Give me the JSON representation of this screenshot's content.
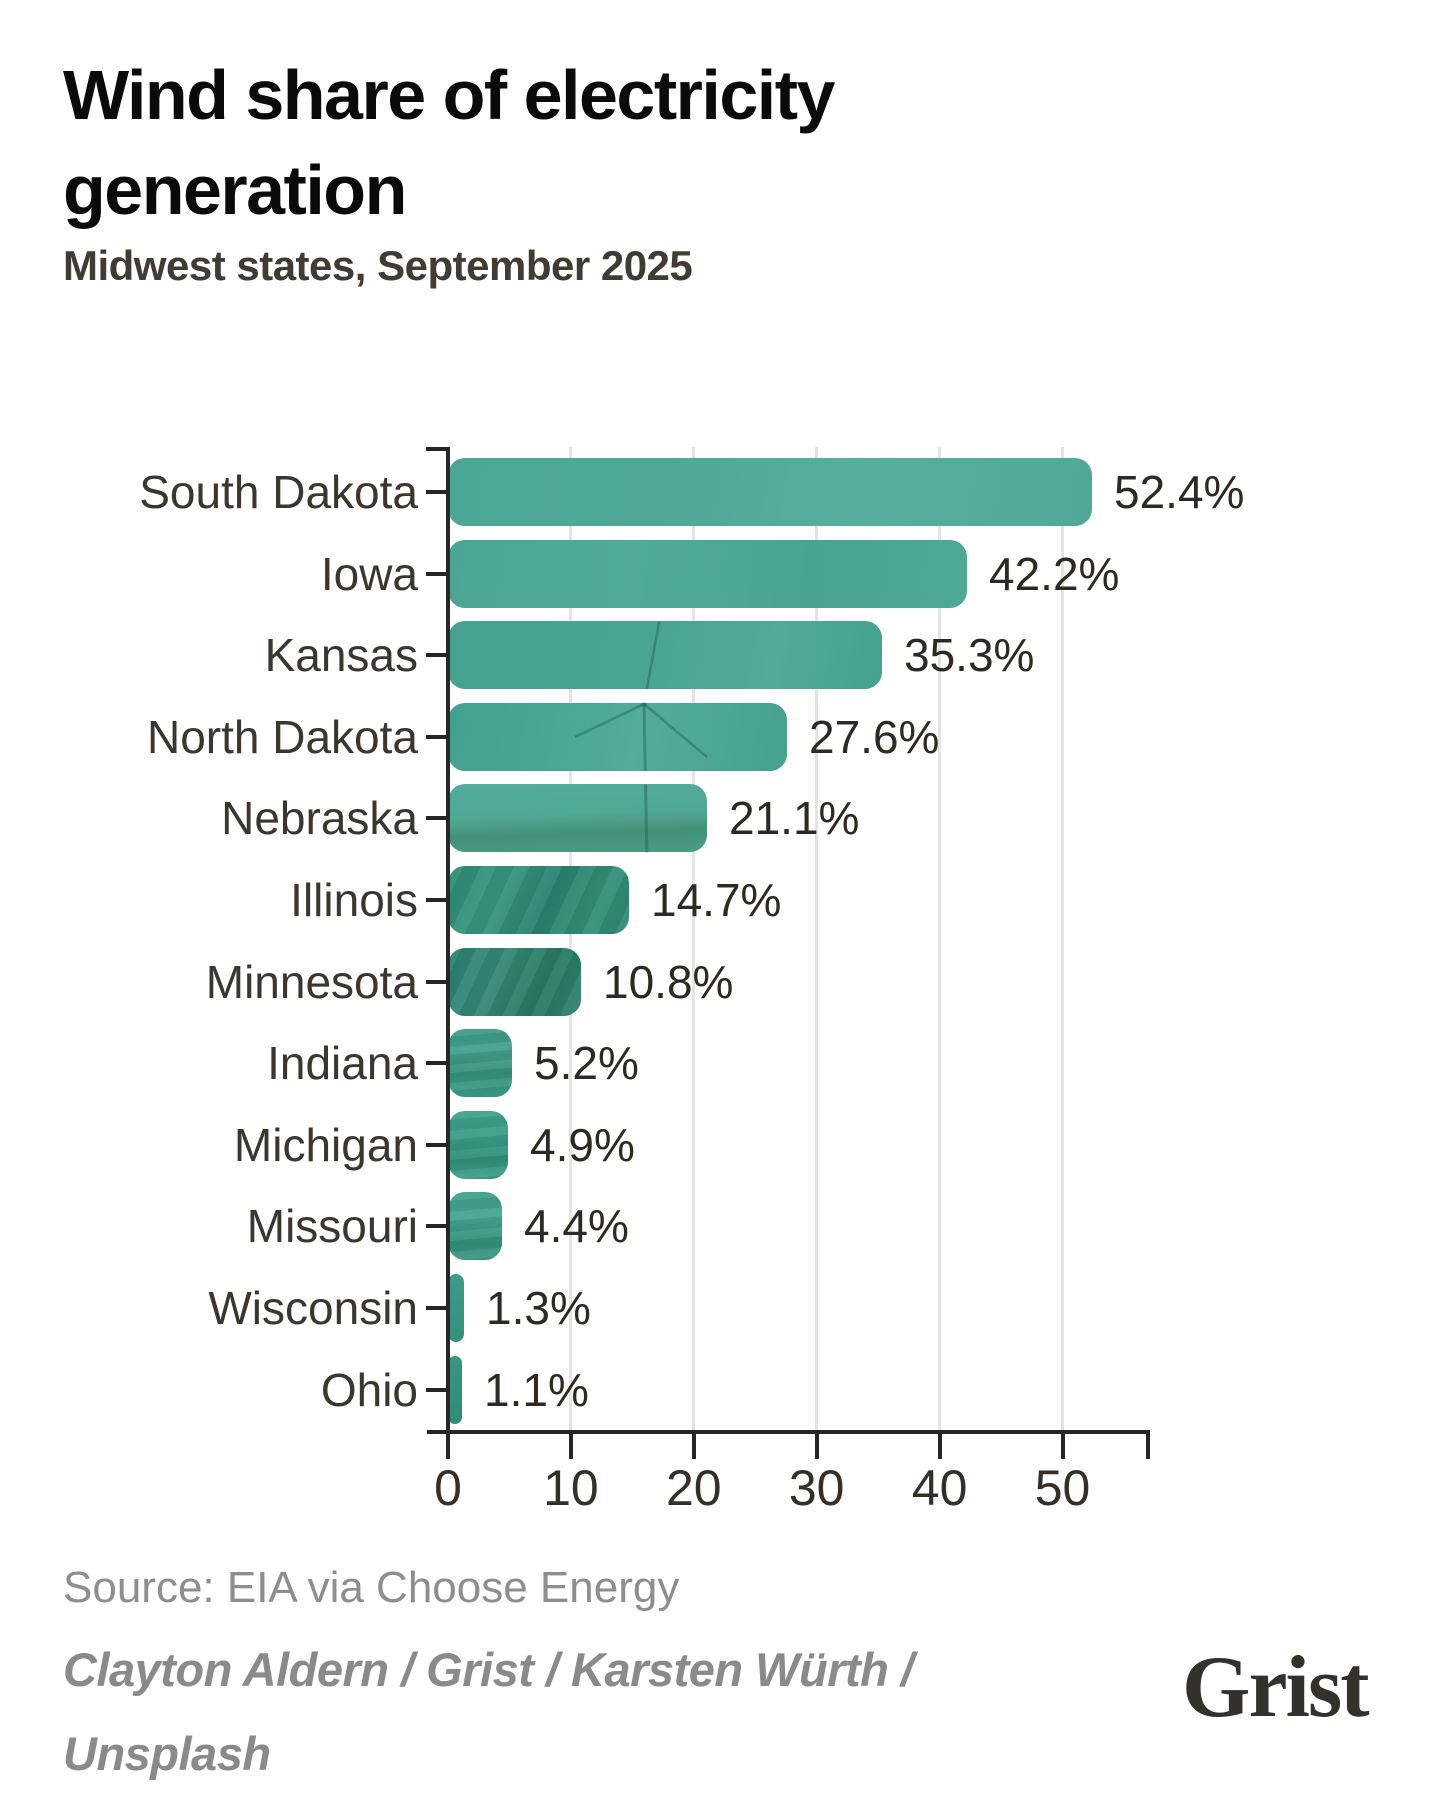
{
  "header": {
    "title": "Wind share of electricity generation",
    "subtitle": "Midwest states, September 2025"
  },
  "chart_data": {
    "type": "bar",
    "orientation": "horizontal",
    "title": "Wind share of electricity generation",
    "subtitle": "Midwest states, September 2025",
    "categories": [
      "South Dakota",
      "Iowa",
      "Kansas",
      "North Dakota",
      "Nebraska",
      "Illinois",
      "Minnesota",
      "Indiana",
      "Michigan",
      "Missouri",
      "Wisconsin",
      "Ohio"
    ],
    "values": [
      52.4,
      42.2,
      35.3,
      27.6,
      21.1,
      14.7,
      10.8,
      5.2,
      4.9,
      4.4,
      1.3,
      1.1
    ],
    "value_labels": [
      "52.4%",
      "42.2%",
      "35.3%",
      "27.6%",
      "21.1%",
      "14.7%",
      "10.8%",
      "5.2%",
      "4.9%",
      "4.4%",
      "1.3%",
      "1.1%"
    ],
    "xlabel": "",
    "ylabel": "",
    "xlim": [
      0,
      57.2
    ],
    "xticks": [
      0,
      10,
      20,
      30,
      40,
      50
    ],
    "grid": "vertical gridlines at 10-50, drawn behind bars",
    "legend": "none",
    "bar_texture_note": "bars are filled with a teal-tinted wind-turbine landscape photo; upper bars show sky, Kansas/North Dakota/Nebraska show a wind turbine silhouette, Nebraska shows hills, lower bars show darker field texture",
    "bar_gradients": [
      "linear-gradient(100deg,#4ca695,#50a997 40%,#57ae9d 65%,#50a896)",
      "linear-gradient(95deg,#4aa594,#51aa99 35%,#49a392 70%,#4ea896)",
      "linear-gradient(100deg,#46a190,#4aa492 45%,#52aa99 75%,#45a08e)",
      "linear-gradient(100deg,#44a08e,#4aa593 30%,#53ab9b 55%,#46a190)",
      "linear-gradient(178deg,#53ac9b,#50a997 42%,#4d9f89 55%,#429278 70%,#45977d 88%,#4a9c82)",
      "repeating-linear-gradient(115deg,rgba(255,255,255,0.05) 0 14px,rgba(0,0,0,0.05) 14px 30px),linear-gradient(115deg,#2f8b77,#38947f 30%,#2a8170 55%,#349078 80%,#2d8873)",
      "repeating-linear-gradient(115deg,rgba(255,255,255,0.05) 0 12px,rgba(0,0,0,0.06) 12px 26px),linear-gradient(115deg,#2b8271,#34897a 35%,#277a63 70%,#2e8371)",
      "repeating-linear-gradient(175deg,rgba(255,255,255,0.06) 0 8px,rgba(0,0,0,0.05) 8px 18px),linear-gradient(180deg,#3b9b86,#44a08d 30%,#34907b 65%,#3d9c87)",
      "repeating-linear-gradient(175deg,rgba(255,255,255,0.05) 0 9px,rgba(0,0,0,0.05) 9px 20px),linear-gradient(180deg,#42a18d,#3b9b86 40%,#318d78 70%,#409f8a)",
      "repeating-linear-gradient(175deg,rgba(255,255,255,0.05) 0 9px,rgba(0,0,0,0.05) 9px 20px),linear-gradient(180deg,#409f8b,#48a593 35%,#338e79 75%,#3b9985)",
      "linear-gradient(180deg,#3e9b87,#34917d)",
      "linear-gradient(180deg,#389682,#308c77)"
    ],
    "colors": {
      "bar_teal_base": "#4aa794",
      "bar_dark_field": "#2e8a76",
      "gridline": "#e4e4e4",
      "axis": "#262626",
      "category_label": "#3a3631",
      "value_label": "#2d2a26",
      "tick_label": "#343029",
      "turbine_silhouette": "#1d6a5c"
    }
  },
  "footer": {
    "source": "Source: EIA via Choose Energy",
    "credit": "Clayton Aldern / Grist / Karsten Würth / Unsplash",
    "logo_text": "Grist",
    "colors": {
      "source_text": "#8e8e8e",
      "credit_text": "#8a8a8a",
      "logo": "#32312b"
    }
  }
}
